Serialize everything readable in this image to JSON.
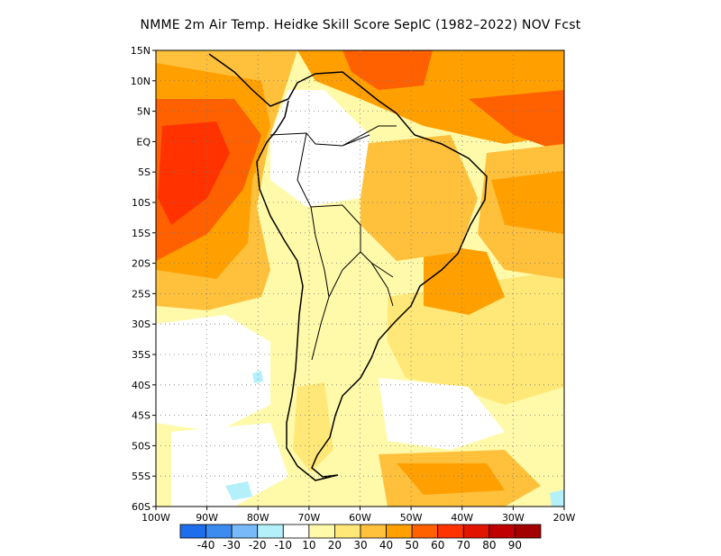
{
  "title": "NMME  2m Air Temp. Heidke Skill Score SepIC (1982–2022) NOV Fcst",
  "map": {
    "lon_range": [
      -100,
      -20
    ],
    "lat_range": [
      -60,
      15
    ],
    "lat_ticks": [
      {
        "value": 15,
        "label": "15N"
      },
      {
        "value": 10,
        "label": "10N"
      },
      {
        "value": 5,
        "label": "5N"
      },
      {
        "value": 0,
        "label": "EQ"
      },
      {
        "value": -5,
        "label": "5S"
      },
      {
        "value": -10,
        "label": "10S"
      },
      {
        "value": -15,
        "label": "15S"
      },
      {
        "value": -20,
        "label": "20S"
      },
      {
        "value": -25,
        "label": "25S"
      },
      {
        "value": -30,
        "label": "30S"
      },
      {
        "value": -35,
        "label": "35S"
      },
      {
        "value": -40,
        "label": "40S"
      },
      {
        "value": -45,
        "label": "45S"
      },
      {
        "value": -50,
        "label": "50S"
      },
      {
        "value": -55,
        "label": "55S"
      },
      {
        "value": -60,
        "label": "60S"
      }
    ],
    "lon_ticks": [
      {
        "value": -100,
        "label": "100W"
      },
      {
        "value": -90,
        "label": "90W"
      },
      {
        "value": -80,
        "label": "80W"
      },
      {
        "value": -70,
        "label": "70W"
      },
      {
        "value": -60,
        "label": "60W"
      },
      {
        "value": -50,
        "label": "50W"
      },
      {
        "value": -40,
        "label": "40W"
      },
      {
        "value": -30,
        "label": "30W"
      },
      {
        "value": -20,
        "label": "20W"
      }
    ],
    "grid": "dotted"
  },
  "colorbar": {
    "bins": [
      {
        "color": "#1e6eeb",
        "label": "-40"
      },
      {
        "color": "#3c8cf0",
        "label": "-30"
      },
      {
        "color": "#78b9fa",
        "label": "-20"
      },
      {
        "color": "#b4f0fa",
        "label": "-10"
      },
      {
        "color": "#ffffff",
        "label": "10"
      },
      {
        "color": "#fffaaa",
        "label": "20"
      },
      {
        "color": "#ffe878",
        "label": "30"
      },
      {
        "color": "#ffc03c",
        "label": "40"
      },
      {
        "color": "#ffa000",
        "label": "50"
      },
      {
        "color": "#ff6000",
        "label": "60"
      },
      {
        "color": "#ff3200",
        "label": "70"
      },
      {
        "color": "#e11400",
        "label": "80"
      },
      {
        "color": "#c00000",
        "label": "90"
      },
      {
        "color": "#a50000",
        "label": ""
      }
    ]
  }
}
